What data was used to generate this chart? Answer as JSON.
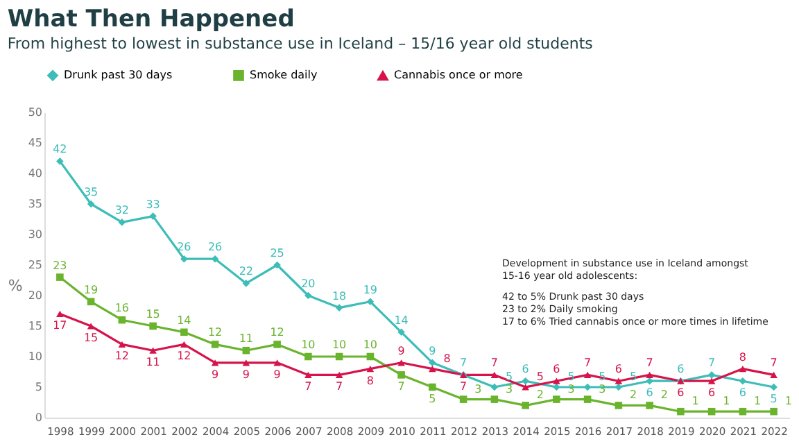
{
  "chart_data": {
    "type": "line",
    "title": "What Then Happened",
    "subtitle": "From highest to lowest in substance use in Iceland – 15/16 year old students",
    "ylabel": "%",
    "categories": [
      "1998",
      "1999",
      "2000",
      "2001",
      "2002",
      "2004",
      "2005",
      "2006",
      "2007",
      "2008",
      "2009",
      "2010",
      "2011",
      "2012",
      "2013",
      "2014",
      "2015",
      "2016",
      "2017",
      "2018",
      "2019",
      "2020",
      "2021",
      "2022"
    ],
    "series": [
      {
        "name": "Drunk past 30 days",
        "color": "#3dbdb8",
        "marker": "diamond",
        "values": [
          42,
          35,
          32,
          33,
          26,
          26,
          22,
          25,
          20,
          18,
          19,
          14,
          9,
          7,
          5,
          6,
          5,
          5,
          5,
          6,
          6,
          7,
          6,
          5
        ]
      },
      {
        "name": "Smoke daily",
        "color": "#6ab42d",
        "marker": "square",
        "values": [
          23,
          19,
          16,
          15,
          14,
          12,
          11,
          12,
          10,
          10,
          10,
          7,
          5,
          3,
          3,
          2,
          3,
          3,
          2,
          2,
          1,
          1,
          1,
          1
        ]
      },
      {
        "name": "Cannabis once or more",
        "color": "#d6144b",
        "marker": "triangle",
        "values": [
          17,
          15,
          12,
          11,
          12,
          9,
          9,
          9,
          7,
          7,
          8,
          9,
          8,
          7,
          7,
          5,
          6,
          7,
          6,
          7,
          6,
          6,
          8,
          7
        ]
      }
    ],
    "ylim": [
      0,
      50
    ],
    "yticks": [
      0,
      5,
      10,
      15,
      20,
      25,
      30,
      35,
      40,
      45,
      50
    ],
    "grid": false,
    "legend": "top",
    "data_labels": true,
    "line_style": "solid",
    "annotations": [
      "Development in substance use in Iceland amongst 15-16 year old adolescents:",
      "42 to 5%  Drunk past 30 days",
      "23 to 2% Daily smoking",
      "17 to 6% Tried cannabis once or more times in lifetime"
    ]
  }
}
